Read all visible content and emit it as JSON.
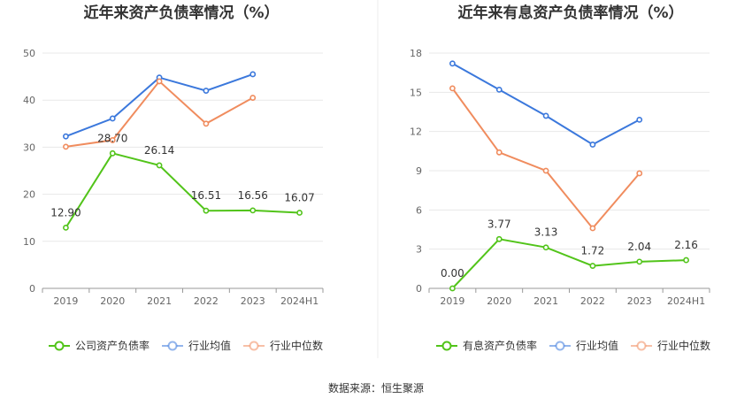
{
  "source": "数据来源：恒生聚源",
  "chart_data": [
    {
      "type": "line",
      "title": "近年来资产负债率情况（%）",
      "categories": [
        "2019",
        "2020",
        "2021",
        "2022",
        "2023",
        "2024H1"
      ],
      "ylim": [
        0,
        50
      ],
      "yticks": [
        "0",
        "10",
        "20",
        "30",
        "40",
        "50"
      ],
      "grid": true,
      "legend_position": "bottom",
      "series": [
        {
          "name": "公司资产负债率",
          "color": "#52c41a",
          "values": [
            12.9,
            28.7,
            26.14,
            16.51,
            16.56,
            16.07
          ],
          "labels": [
            "12.90",
            "28.70",
            "26.14",
            "16.51",
            "16.56",
            "16.07"
          ]
        },
        {
          "name": "行业均值",
          "color": "#3b78dc",
          "values": [
            32.3,
            36.1,
            44.8,
            42.0,
            45.5,
            null
          ]
        },
        {
          "name": "行业中位数",
          "color": "#f08c5e",
          "values": [
            30.1,
            31.5,
            44.0,
            35.0,
            40.5,
            null
          ]
        }
      ]
    },
    {
      "type": "line",
      "title": "近年来有息资产负债率情况（%）",
      "categories": [
        "2019",
        "2020",
        "2021",
        "2022",
        "2023",
        "2024H1"
      ],
      "ylim": [
        0,
        18
      ],
      "yticks": [
        "0",
        "3",
        "6",
        "9",
        "12",
        "15",
        "18"
      ],
      "grid": true,
      "legend_position": "bottom",
      "series": [
        {
          "name": "有息资产负债率",
          "color": "#52c41a",
          "values": [
            0.0,
            3.77,
            3.13,
            1.72,
            2.04,
            2.16
          ],
          "labels": [
            "0.00",
            "3.77",
            "3.13",
            "1.72",
            "2.04",
            "2.16"
          ]
        },
        {
          "name": "行业均值",
          "color": "#3b78dc",
          "values": [
            17.2,
            15.2,
            13.2,
            11.0,
            12.9,
            null
          ]
        },
        {
          "name": "行业中位数",
          "color": "#f08c5e",
          "values": [
            15.3,
            10.4,
            9.0,
            4.6,
            8.8,
            null
          ]
        }
      ]
    }
  ]
}
